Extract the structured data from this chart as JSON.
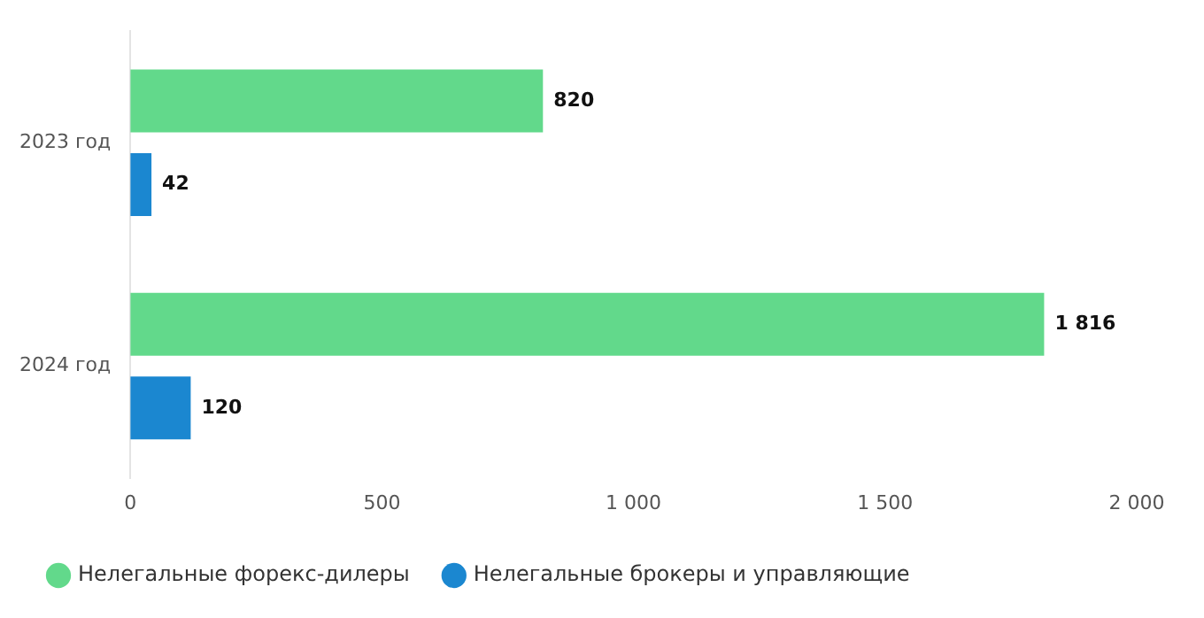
{
  "chart_data": {
    "type": "bar",
    "orientation": "horizontal",
    "categories": [
      "2023 год",
      "2024 год"
    ],
    "series": [
      {
        "name": "Нелегальные форекс-дилеры",
        "color": "#62d98b",
        "values": [
          820,
          1816
        ],
        "value_labels": [
          "820",
          "1 816"
        ]
      },
      {
        "name": "Нелегальные брокеры и управляющие",
        "color": "#1b87d0",
        "values": [
          42,
          120
        ],
        "value_labels": [
          "42",
          "120"
        ]
      }
    ],
    "xlim": [
      0,
      2000
    ],
    "xticks": [
      0,
      500,
      {
        "value": 1000,
        "label": "1 000"
      },
      {
        "value": 1500,
        "label": "1 500"
      },
      {
        "value": 2000,
        "label": "2 000"
      }
    ],
    "grid": false,
    "legend": "bottom left"
  }
}
